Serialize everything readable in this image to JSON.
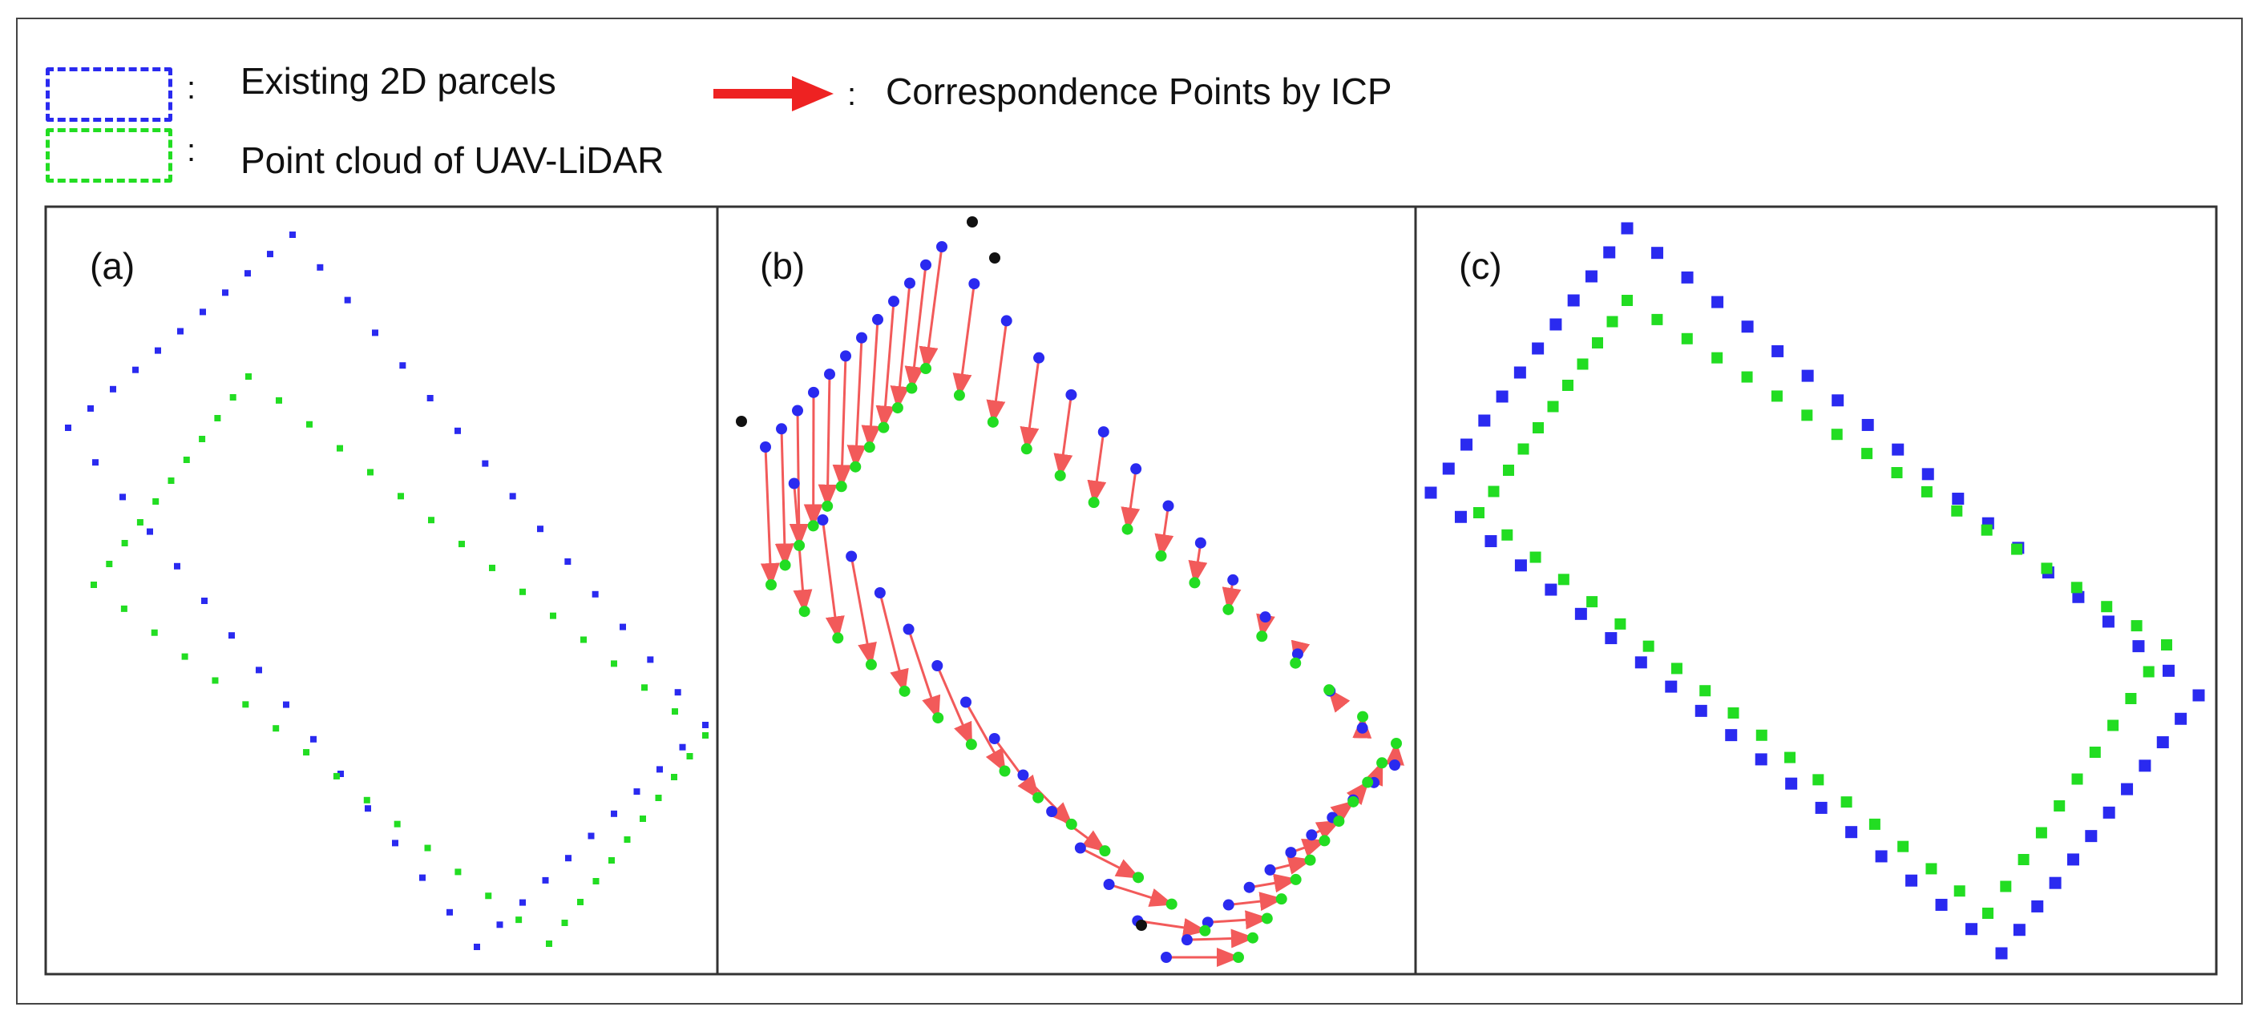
{
  "legend": {
    "parcels_label": "Existing 2D parcels",
    "lidar_label": "Point cloud of UAV-LiDAR",
    "icp_label": "Correspondence  Points by ICP",
    "colon": ":",
    "colors": {
      "parcels": "#2a2af0",
      "lidar": "#22dd22",
      "icp_arrow": "#ee2222"
    }
  },
  "panels": [
    {
      "label": "(a)"
    },
    {
      "label": "(b)"
    },
    {
      "label": "(c)"
    }
  ],
  "colors": {
    "blue_point": "#2a2af0",
    "green_point": "#22dd22",
    "arrow": "#f25a5a",
    "outlier": "#111111",
    "panel_border": "#333333"
  }
}
